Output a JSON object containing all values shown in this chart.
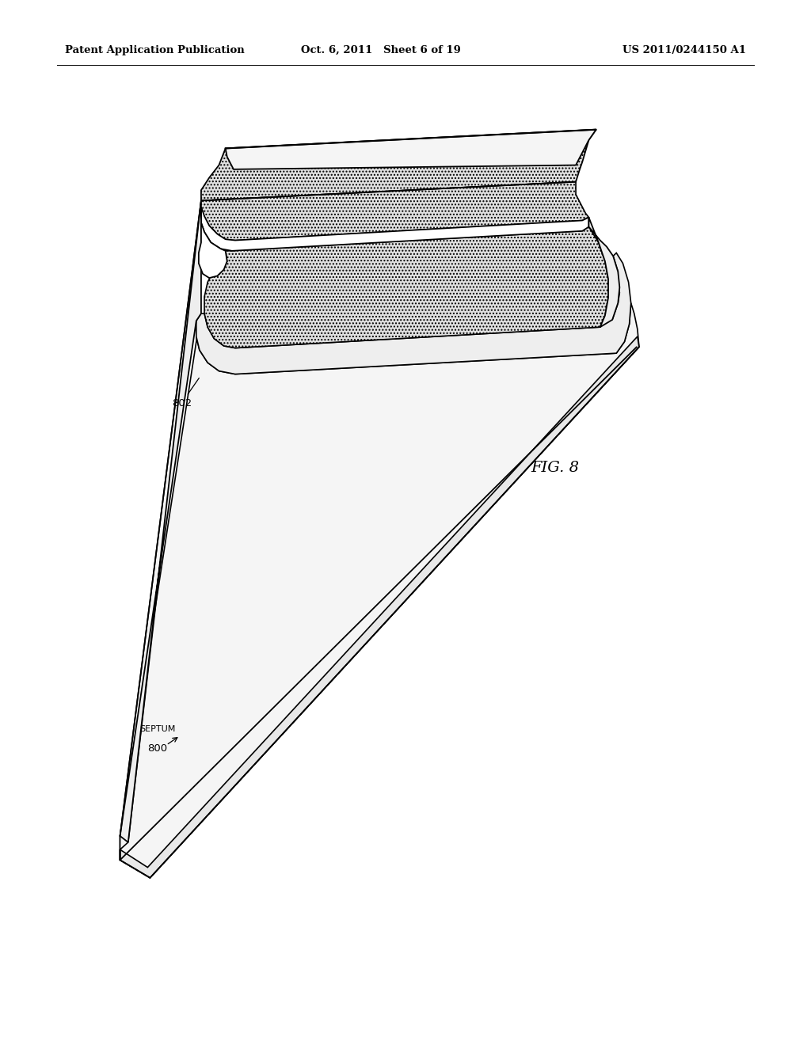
{
  "background_color": "#ffffff",
  "header_left": "Patent Application Publication",
  "header_center": "Oct. 6, 2011   Sheet 6 of 19",
  "header_right": "US 2011/0244150 A1",
  "header_fontsize": 9.5,
  "fig_label": "FIG. 8",
  "fig_label_fontsize": 14,
  "line_color": "#000000",
  "line_width": 1.2
}
